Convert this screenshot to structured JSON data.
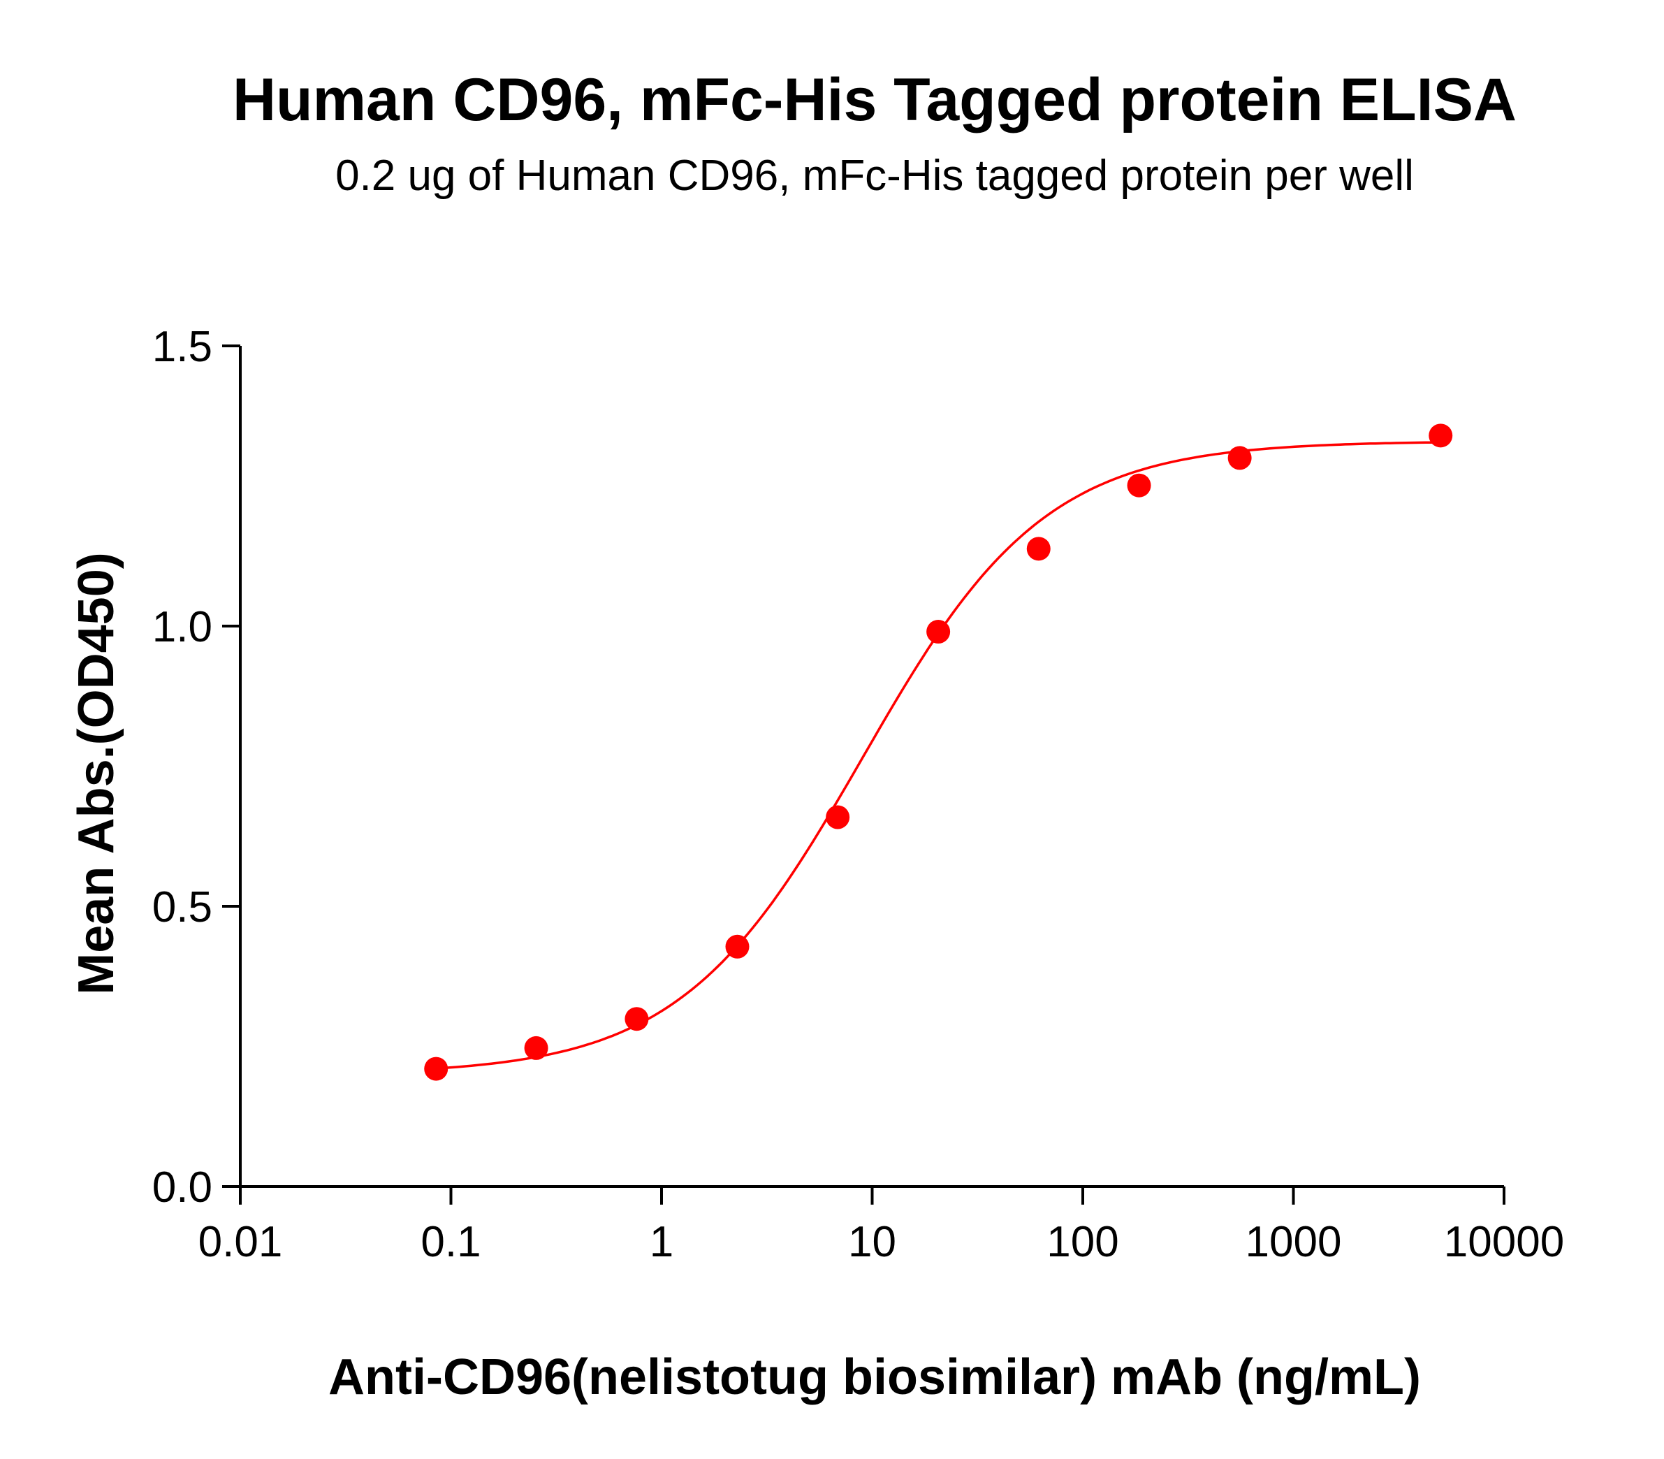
{
  "chart_data": {
    "type": "scatter",
    "title": "Human CD96, mFc-His Tagged protein ELISA",
    "subtitle": "0.2 ug of Human CD96, mFc-His tagged protein per well",
    "xlabel": "Anti-CD96(nelistotug biosimilar) mAb (ng/mL)",
    "ylabel": "Mean Abs.(OD450)",
    "x_scale": "log",
    "xlim": [
      0.01,
      10000
    ],
    "ylim": [
      0,
      1.5
    ],
    "x_ticks": [
      "0.01",
      "0.1",
      "1",
      "10",
      "100",
      "1000",
      "10000"
    ],
    "y_ticks": [
      "0.0",
      "0.5",
      "1.0",
      "1.5"
    ],
    "grid": false,
    "legend": "none",
    "color": "#ff0000",
    "fit_curve": "sigmoidal 4PL",
    "series": [
      {
        "x": [
          0.085,
          0.254,
          0.762,
          2.29,
          6.86,
          20.6,
          61.7,
          185,
          556,
          5000
        ],
        "y": [
          0.21,
          0.247,
          0.299,
          0.428,
          0.659,
          0.99,
          1.138,
          1.251,
          1.3,
          1.34
        ]
      }
    ]
  }
}
